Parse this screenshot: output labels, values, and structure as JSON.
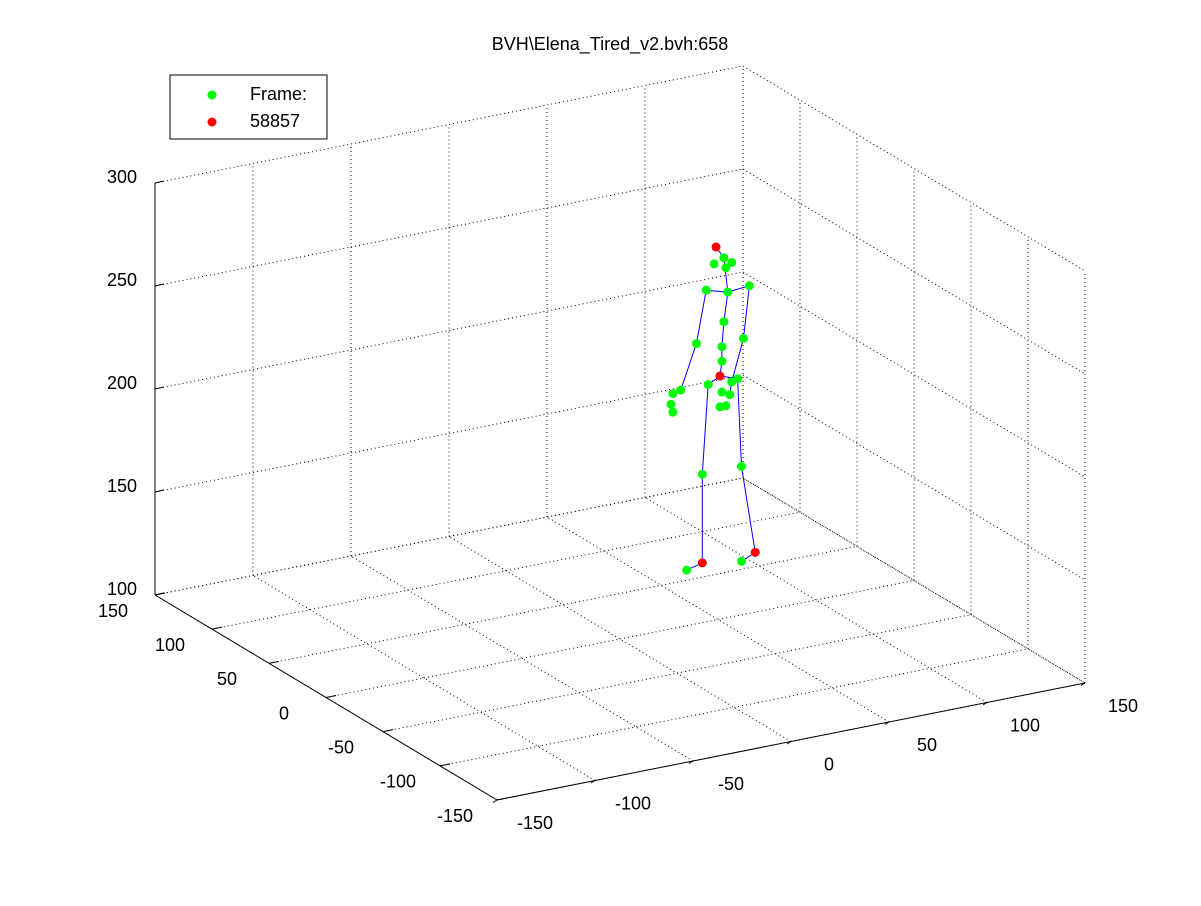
{
  "chart_data": {
    "type": "scatter3d",
    "title": "BVH\\Elena_Tired_v2.bvh:658",
    "xlim": [
      -150,
      150
    ],
    "xticks": [
      -150,
      -100,
      -50,
      0,
      50,
      100,
      150
    ],
    "ylim": [
      -150,
      150
    ],
    "yticks": [
      -150,
      -100,
      -50,
      0,
      50,
      100,
      150
    ],
    "zlim": [
      100,
      300
    ],
    "zticks": [
      100,
      150,
      200,
      250,
      300
    ],
    "grid": true,
    "legend": "top-left",
    "series": [
      {
        "name": "Frame:",
        "color": "#00ff00",
        "x": [
          48,
          53,
          57,
          54,
          44,
          66,
          55,
          53,
          52,
          52,
          39,
          63,
          45,
          60,
          27,
          31,
          26,
          27,
          52,
          56,
          54,
          51,
          57,
          42,
          62,
          34,
          62
        ],
        "y": [
          0,
          0,
          0,
          0,
          0,
          0,
          0,
          0,
          0,
          0,
          0,
          0,
          0,
          0,
          0,
          0,
          0,
          0,
          0,
          0,
          0,
          0,
          0,
          0,
          0,
          0,
          0
        ],
        "z": [
          273,
          275,
          272,
          270,
          261,
          259,
          258,
          244,
          232,
          225,
          236,
          234,
          215,
          215,
          214,
          215,
          209,
          205,
          210,
          208,
          203,
          203,
          214,
          172,
          172,
          127,
          126
        ]
      },
      {
        "name": "58857",
        "color": "#ff0000",
        "x": [
          49,
          51,
          42,
          69
        ],
        "y": [
          0,
          0,
          0,
          0
        ],
        "z": [
          281,
          218,
          129,
          129
        ]
      }
    ],
    "lines": {
      "color": "#0000ff",
      "x": [
        51,
        52,
        52,
        53,
        55,
        53,
        49,
        null,
        55,
        44,
        39,
        31,
        27,
        null,
        55,
        66,
        63,
        57,
        56,
        null,
        51,
        45,
        42,
        42,
        34,
        null,
        51,
        60,
        62,
        69,
        62
      ],
      "y": [
        0,
        0,
        0,
        0,
        0,
        0,
        0,
        null,
        0,
        0,
        0,
        0,
        0,
        null,
        0,
        0,
        0,
        0,
        0,
        null,
        0,
        0,
        0,
        0,
        0,
        null,
        0,
        0,
        0,
        0,
        0
      ],
      "z": [
        218,
        225,
        232,
        244,
        258,
        275,
        281,
        null,
        258,
        261,
        236,
        215,
        214,
        null,
        258,
        259,
        234,
        214,
        208,
        null,
        218,
        215,
        172,
        129,
        127,
        null,
        218,
        215,
        172,
        129,
        126
      ]
    }
  }
}
